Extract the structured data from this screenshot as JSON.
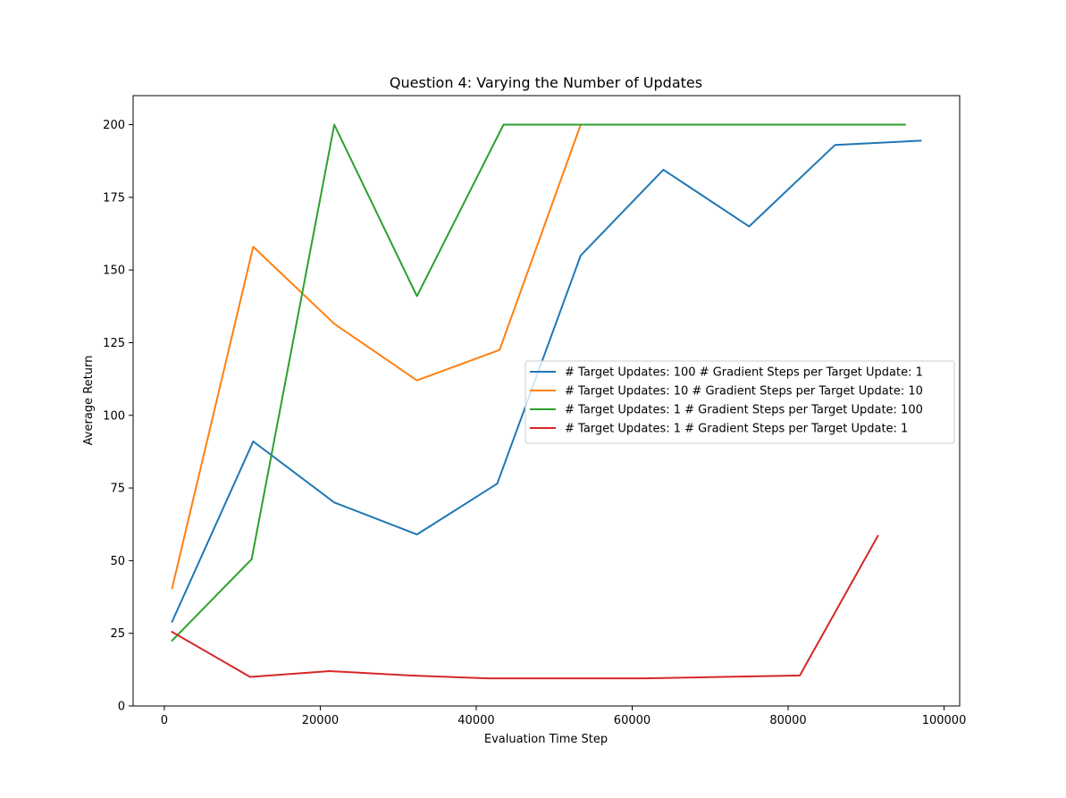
{
  "chart_data": {
    "type": "line",
    "title": "Question 4: Varying the Number of Updates",
    "xlabel": "Evaluation Time Step",
    "ylabel": "Average Return",
    "xlim": [
      -4000,
      102000
    ],
    "ylim": [
      0,
      210
    ],
    "xticks": [
      0,
      20000,
      40000,
      60000,
      80000,
      100000
    ],
    "yticks": [
      0,
      25,
      50,
      75,
      100,
      125,
      150,
      175,
      200
    ],
    "grid": false,
    "legend_placement": "center-right",
    "series": [
      {
        "name": "# Target Updates: 100 # Gradient Steps per Target Update: 1",
        "color": "#1f77b4",
        "x": [
          1000,
          11400,
          21800,
          32400,
          42700,
          53400,
          64000,
          75000,
          86000,
          97000
        ],
        "y": [
          29,
          91,
          70,
          59,
          76.5,
          155,
          184.5,
          165,
          193,
          194.5
        ]
      },
      {
        "name": "# Target Updates: 10 # Gradient Steps per Target Update: 10",
        "color": "#ff7f0e",
        "x": [
          1000,
          11400,
          21800,
          32400,
          43000,
          53400
        ],
        "y": [
          40.5,
          158,
          131.5,
          112,
          122.5,
          200
        ]
      },
      {
        "name": "# Target Updates: 1 # Gradient Steps per Target Update: 100",
        "color": "#2ca02c",
        "x": [
          1000,
          11200,
          21800,
          32400,
          43500,
          53000,
          64000,
          75000,
          86000,
          95000
        ],
        "y": [
          22.5,
          50.5,
          200,
          141,
          200,
          200,
          200,
          200,
          200,
          200
        ]
      },
      {
        "name": "# Target Updates: 1 # Gradient Steps per Target Update: 1",
        "color": "#d62728",
        "x": [
          1000,
          11000,
          21200,
          31500,
          41500,
          51500,
          61500,
          71500,
          81500,
          91500
        ],
        "y": [
          25.5,
          10,
          12,
          10.5,
          9.5,
          9.5,
          9.5,
          10,
          10.5,
          58.5
        ]
      }
    ]
  }
}
